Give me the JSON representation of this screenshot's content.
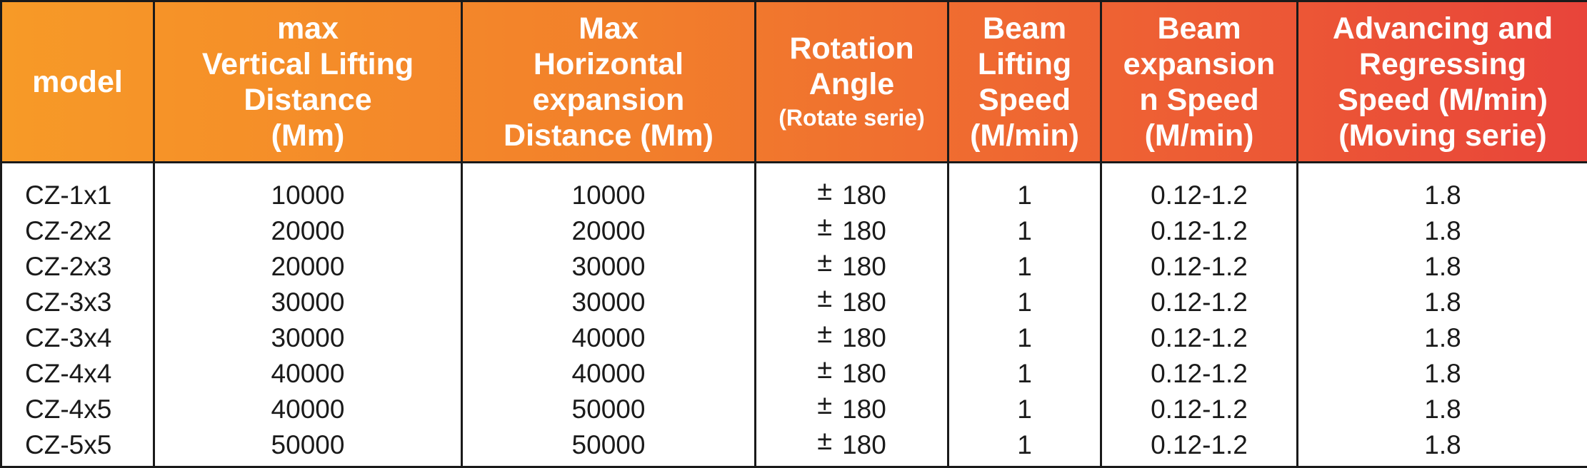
{
  "table": {
    "headers": [
      {
        "main": "model",
        "sub": ""
      },
      {
        "main": "max\nVertical Lifting\nDistance\n(Mm)",
        "sub": ""
      },
      {
        "main": "Max\nHorizontal\nexpansion\nDistance (Mm)",
        "sub": ""
      },
      {
        "main": "Rotation\nAngle",
        "sub": "(Rotate serie)"
      },
      {
        "main": "Beam\nLifting\nSpeed\n(M/min)",
        "sub": ""
      },
      {
        "main": "Beam\nexpansion\nn Speed\n(M/min)",
        "sub": ""
      },
      {
        "main": "Advancing and\nRegressing\nSpeed (M/min)\n(Moving serie)",
        "sub": ""
      }
    ],
    "rows": [
      {
        "model": "CZ-1x1",
        "vertical": "10000",
        "horizontal": "10000",
        "rotation_sign": "±",
        "rotation": "180",
        "lifting_speed": "1",
        "expansion_speed": "0.12-1.2",
        "advancing_speed": "1.8"
      },
      {
        "model": "CZ-2x2",
        "vertical": "20000",
        "horizontal": "20000",
        "rotation_sign": "±",
        "rotation": "180",
        "lifting_speed": "1",
        "expansion_speed": "0.12-1.2",
        "advancing_speed": "1.8"
      },
      {
        "model": "CZ-2x3",
        "vertical": "20000",
        "horizontal": "30000",
        "rotation_sign": "±",
        "rotation": "180",
        "lifting_speed": "1",
        "expansion_speed": "0.12-1.2",
        "advancing_speed": "1.8"
      },
      {
        "model": "CZ-3x3",
        "vertical": "30000",
        "horizontal": "30000",
        "rotation_sign": "±",
        "rotation": "180",
        "lifting_speed": "1",
        "expansion_speed": "0.12-1.2",
        "advancing_speed": "1.8"
      },
      {
        "model": "CZ-3x4",
        "vertical": "30000",
        "horizontal": "40000",
        "rotation_sign": "±",
        "rotation": "180",
        "lifting_speed": "1",
        "expansion_speed": "0.12-1.2",
        "advancing_speed": "1.8"
      },
      {
        "model": "CZ-4x4",
        "vertical": "40000",
        "horizontal": "40000",
        "rotation_sign": "±",
        "rotation": "180",
        "lifting_speed": "1",
        "expansion_speed": "0.12-1.2",
        "advancing_speed": "1.8"
      },
      {
        "model": "CZ-4x5",
        "vertical": "40000",
        "horizontal": "50000",
        "rotation_sign": "±",
        "rotation": "180",
        "lifting_speed": "1",
        "expansion_speed": "0.12-1.2",
        "advancing_speed": "1.8"
      },
      {
        "model": "CZ-5x5",
        "vertical": "50000",
        "horizontal": "50000",
        "rotation_sign": "±",
        "rotation": "180",
        "lifting_speed": "1",
        "expansion_speed": "0.12-1.2",
        "advancing_speed": "1.8"
      }
    ]
  },
  "colors": {
    "header_gradient_start": "#f79a27",
    "header_gradient_end": "#e8443a",
    "border": "#1a1a1a",
    "header_text": "#ffffff",
    "body_text": "#1a1a1a"
  }
}
